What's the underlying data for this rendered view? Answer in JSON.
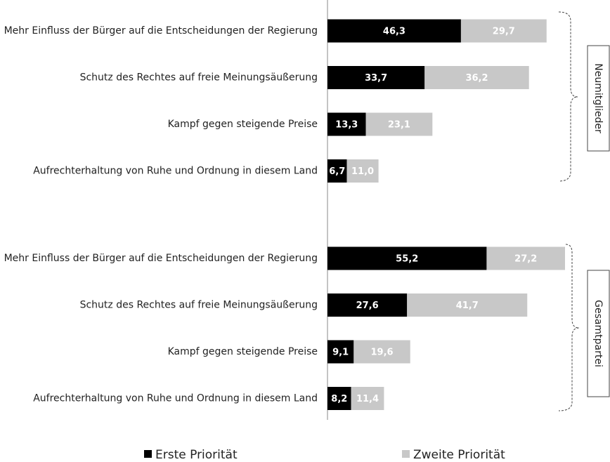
{
  "chart_data": {
    "type": "bar",
    "stacked": true,
    "categories": [
      "Mehr Einfluss der Bürger auf die Entscheidungen der Regierung",
      "Schutz des Rechtes auf freie Meinungsäußerung",
      "Kampf gegen steigende Preise",
      "Aufrechterhaltung von Ruhe und Ordnung in diesem Land",
      "Mehr Einfluss der Bürger auf die Entscheidungen der Regierung",
      "Schutz des Rechtes auf freie Meinungsäußerung",
      "Kampf gegen steigende Preise",
      "Aufrechterhaltung von Ruhe und Ordnung in diesem Land"
    ],
    "groups": [
      "Neumitglieder",
      "Gesamtpartei"
    ],
    "series": [
      {
        "name": "Erste Priorität",
        "color": "#000000",
        "values": [
          46.3,
          33.7,
          13.3,
          6.7,
          55.2,
          27.6,
          9.1,
          8.2
        ],
        "value_labels": [
          "46,3",
          "33,7",
          "13,3",
          "6,7",
          "55,2",
          "27,6",
          "9,1",
          "8,2"
        ]
      },
      {
        "name": "Zweite Priorität",
        "color": "#c8c8c8",
        "values": [
          29.7,
          36.2,
          23.1,
          11.0,
          27.2,
          41.7,
          19.6,
          11.4
        ],
        "value_labels": [
          "29,7",
          "36,2",
          "23,1",
          "11,0",
          "27,2",
          "41,7",
          "19,6",
          "11,4"
        ]
      }
    ]
  }
}
